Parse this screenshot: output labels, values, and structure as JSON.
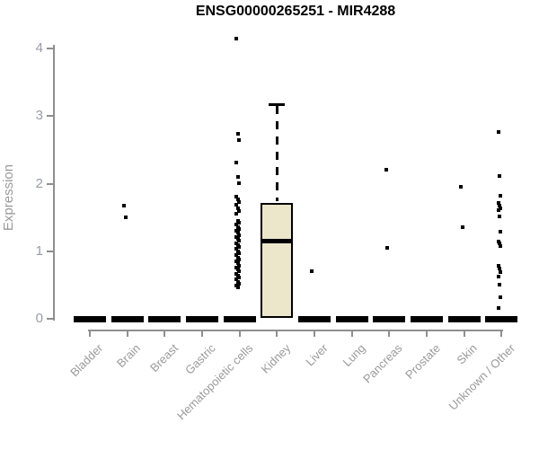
{
  "chart_data": {
    "type": "boxplot",
    "title": "ENSG00000265251 - MIR4288",
    "ylabel": "Expression",
    "xlabel": "",
    "ylim": [
      0,
      4
    ],
    "yticks": [
      0,
      1,
      2,
      3,
      4
    ],
    "grid": false,
    "legend": false,
    "colors": {
      "box_fill": "#ECE7CB",
      "box_border": "#000000",
      "median": "#000000",
      "point": "#000000",
      "axis": "#8f8f8f",
      "tick_label": "#9a9a9a",
      "title": "#000000"
    },
    "categories": [
      "Bladder",
      "Brain",
      "Breast",
      "Gastric",
      "Hematopoietic cells",
      "Kidney",
      "Liver",
      "Lung",
      "Pancreas",
      "Prostate",
      "Skin",
      "Unknown / Other"
    ],
    "groups": [
      {
        "name": "Bladder",
        "q1": 0,
        "median": 0,
        "q3": 0,
        "whisker_low": 0,
        "whisker_high": 0,
        "outliers": []
      },
      {
        "name": "Brain",
        "q1": 0,
        "median": 0,
        "q3": 0,
        "whisker_low": 0,
        "whisker_high": 0,
        "outliers": [
          1.68,
          1.5
        ]
      },
      {
        "name": "Breast",
        "q1": 0,
        "median": 0,
        "q3": 0,
        "whisker_low": 0,
        "whisker_high": 0,
        "outliers": []
      },
      {
        "name": "Gastric",
        "q1": 0,
        "median": 0,
        "q3": 0,
        "whisker_low": 0,
        "whisker_high": 0,
        "outliers": []
      },
      {
        "name": "Hematopoietic cells",
        "q1": 0,
        "median": 0,
        "q3": 0,
        "whisker_low": 0,
        "whisker_high": 0,
        "outliers": [
          4.15,
          2.74,
          2.65,
          2.31,
          2.1,
          2.01,
          1.81,
          1.77,
          1.73,
          1.69,
          1.63,
          1.59,
          1.55,
          1.45,
          1.42,
          1.39,
          1.36,
          1.33,
          1.3,
          1.27,
          1.24,
          1.21,
          1.18,
          1.15,
          1.12,
          1.09,
          1.06,
          1.03,
          1.0,
          0.97,
          0.94,
          0.91,
          0.88,
          0.85,
          0.82,
          0.79,
          0.76,
          0.73,
          0.7,
          0.67,
          0.64,
          0.61,
          0.58,
          0.55,
          0.52,
          0.49,
          0.46
        ]
      },
      {
        "name": "Kidney",
        "q1": 0.01,
        "median": 1.15,
        "q3": 1.71,
        "whisker_low": 0.01,
        "whisker_high": 3.17,
        "outliers": []
      },
      {
        "name": "Liver",
        "q1": 0,
        "median": 0,
        "q3": 0,
        "whisker_low": 0,
        "whisker_high": 0,
        "outliers": [
          0.71
        ]
      },
      {
        "name": "Lung",
        "q1": 0,
        "median": 0,
        "q3": 0,
        "whisker_low": 0,
        "whisker_high": 0,
        "outliers": []
      },
      {
        "name": "Pancreas",
        "q1": 0,
        "median": 0,
        "q3": 0,
        "whisker_low": 0,
        "whisker_high": 0,
        "outliers": [
          2.21,
          1.05
        ]
      },
      {
        "name": "Prostate",
        "q1": 0,
        "median": 0,
        "q3": 0,
        "whisker_low": 0,
        "whisker_high": 0,
        "outliers": []
      },
      {
        "name": "Skin",
        "q1": 0,
        "median": 0,
        "q3": 0,
        "whisker_low": 0,
        "whisker_high": 0,
        "outliers": [
          1.96,
          1.35
        ]
      },
      {
        "name": "Unknown / Other",
        "q1": 0,
        "median": 0,
        "q3": 0,
        "whisker_low": 0,
        "whisker_high": 0,
        "outliers": [
          2.77,
          2.11,
          1.82,
          1.72,
          1.68,
          1.64,
          1.61,
          1.52,
          1.29,
          1.14,
          1.11,
          1.08,
          0.79,
          0.74,
          0.69,
          0.63,
          0.51,
          0.32,
          0.16
        ]
      }
    ]
  }
}
